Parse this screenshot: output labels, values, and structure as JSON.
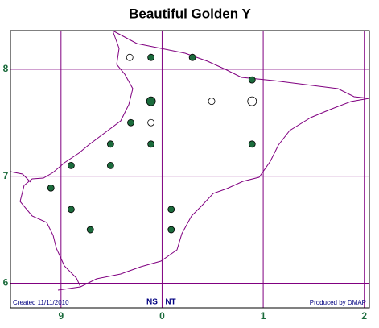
{
  "title": "Beautiful Golden Y",
  "map": {
    "xlim": [
      8.5,
      12.05
    ],
    "ylim": [
      5.77,
      8.36
    ],
    "xticks": [
      {
        "value": 9,
        "label": "9"
      },
      {
        "value": 10,
        "label": "0"
      },
      {
        "value": 11,
        "label": "1"
      },
      {
        "value": 12,
        "label": "2"
      }
    ],
    "yticks": [
      6,
      7,
      8
    ],
    "grid_color": "#800080",
    "records": [
      {
        "x": 9.68,
        "y": 8.11,
        "fill": "#ffffff"
      },
      {
        "x": 9.89,
        "y": 8.11,
        "fill": "#1b6b3c"
      },
      {
        "x": 10.3,
        "y": 8.11,
        "fill": "#1b6b3c"
      },
      {
        "x": 10.89,
        "y": 7.9,
        "fill": "#1b6b3c"
      },
      {
        "x": 9.89,
        "y": 7.7,
        "fill": "#1b6b3c",
        "large": true
      },
      {
        "x": 10.49,
        "y": 7.7,
        "fill": "#ffffff"
      },
      {
        "x": 10.89,
        "y": 7.7,
        "fill": "#ffffff",
        "large": true
      },
      {
        "x": 9.69,
        "y": 7.5,
        "fill": "#1b6b3c"
      },
      {
        "x": 9.89,
        "y": 7.5,
        "fill": "#ffffff"
      },
      {
        "x": 9.49,
        "y": 7.3,
        "fill": "#1b6b3c"
      },
      {
        "x": 9.89,
        "y": 7.3,
        "fill": "#1b6b3c"
      },
      {
        "x": 10.89,
        "y": 7.3,
        "fill": "#1b6b3c"
      },
      {
        "x": 9.1,
        "y": 7.1,
        "fill": "#1b6b3c"
      },
      {
        "x": 9.49,
        "y": 7.1,
        "fill": "#1b6b3c"
      },
      {
        "x": 8.9,
        "y": 6.89,
        "fill": "#1b6b3c"
      },
      {
        "x": 9.1,
        "y": 6.69,
        "fill": "#1b6b3c"
      },
      {
        "x": 10.09,
        "y": 6.69,
        "fill": "#1b6b3c"
      },
      {
        "x": 9.29,
        "y": 6.5,
        "fill": "#1b6b3c"
      },
      {
        "x": 10.09,
        "y": 6.5,
        "fill": "#1b6b3c"
      }
    ]
  },
  "footer": {
    "created": "Created 11/11/2010",
    "squares": [
      "NS",
      "NT"
    ],
    "credit": "Produced by DMAP"
  }
}
